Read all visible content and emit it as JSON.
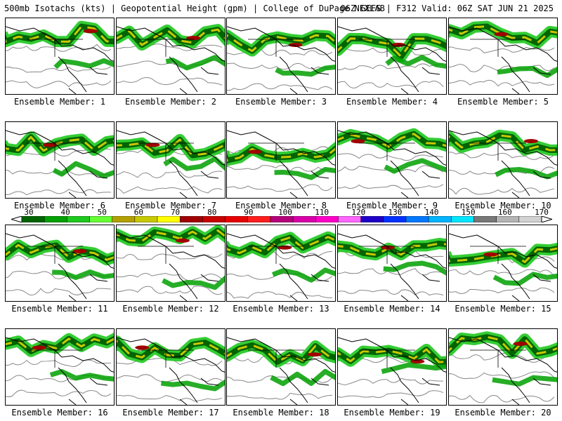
{
  "header": {
    "title_left": "500mb Isotachs (kts) | Geopotential Height (gpm) | College of DuPage NEXLAB",
    "title_right": "06Z GEFS | F312 Valid: 06Z SAT JUN 21 2025"
  },
  "colorbar": {
    "ticks": [
      "30",
      "40",
      "50",
      "60",
      "70",
      "80",
      "90",
      "100",
      "110",
      "120",
      "130",
      "140",
      "150",
      "160",
      "170"
    ],
    "colors": [
      "#006400",
      "#00a000",
      "#1ec81e",
      "#66ff33",
      "#b3a000",
      "#c8c800",
      "#ffff00",
      "#a00000",
      "#c80000",
      "#e60000",
      "#ff1e1e",
      "#b4007a",
      "#d800a8",
      "#ff00c8",
      "#ff66ff",
      "#1e00c8",
      "#0032ff",
      "#0078ff",
      "#00b4ff",
      "#00e6ff",
      "#787878",
      "#b4b4b4",
      "#d2d2d2"
    ]
  },
  "panels": [
    {
      "label": "Ensemble Member: 1"
    },
    {
      "label": "Ensemble Member: 2"
    },
    {
      "label": "Ensemble Member: 3"
    },
    {
      "label": "Ensemble Member: 4"
    },
    {
      "label": "Ensemble Member: 5"
    },
    {
      "label": "Ensemble Member: 6"
    },
    {
      "label": "Ensemble Member: 7"
    },
    {
      "label": "Ensemble Member: 8"
    },
    {
      "label": "Ensemble Member: 9"
    },
    {
      "label": "Ensemble Member: 10"
    },
    {
      "label": "Ensemble Member: 11"
    },
    {
      "label": "Ensemble Member: 12"
    },
    {
      "label": "Ensemble Member: 13"
    },
    {
      "label": "Ensemble Member: 14"
    },
    {
      "label": "Ensemble Member: 15"
    },
    {
      "label": "Ensemble Member: 16"
    },
    {
      "label": "Ensemble Member: 17"
    },
    {
      "label": "Ensemble Member: 18"
    },
    {
      "label": "Ensemble Member: 19"
    },
    {
      "label": "Ensemble Member: 20"
    }
  ]
}
